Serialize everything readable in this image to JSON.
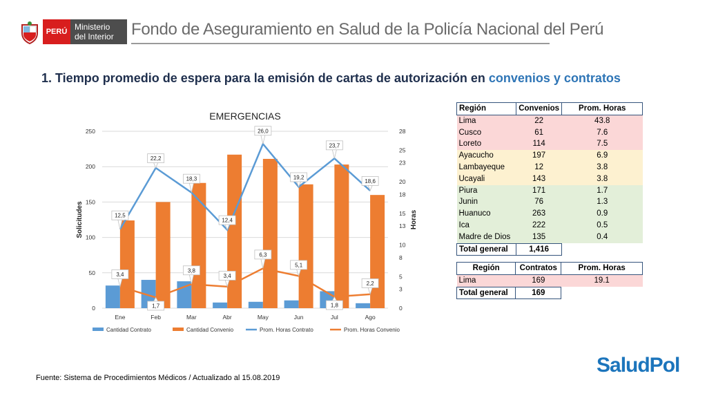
{
  "header": {
    "peru_label": "PERÚ",
    "ministry_line1": "Ministerio",
    "ministry_line2": "del Interior",
    "org_title": "Fondo de Aseguramiento en Salud de la Policía Nacional del Perú"
  },
  "section": {
    "title_main": "1. Tiempo promedio de espera para la emisión de cartas de autorización en ",
    "title_highlight": "convenios y contratos"
  },
  "chart_data": {
    "type": "bar",
    "title": "EMERGENCIAS",
    "categories": [
      "Ene",
      "Feb",
      "Mar",
      "Abr",
      "May",
      "Jun",
      "Jul",
      "Ago"
    ],
    "ylabel": "Solicitudes",
    "y2label": "Horas",
    "ylim": [
      0,
      250
    ],
    "yticks": [
      0,
      50,
      100,
      150,
      200,
      250
    ],
    "y2lim": [
      0,
      28
    ],
    "y2ticks": [
      "0",
      "3",
      "5",
      "8",
      "10",
      "13",
      "15",
      "18",
      "20",
      "23",
      "25",
      "28"
    ],
    "bar_series": [
      {
        "name": "Cantidad Contrato",
        "color": "#5b9bd5",
        "values": [
          32,
          40,
          38,
          8,
          9,
          11,
          24,
          7
        ]
      },
      {
        "name": "Cantidad Convenio",
        "color": "#ed7d31",
        "values": [
          124,
          150,
          177,
          217,
          211,
          175,
          203,
          160
        ]
      }
    ],
    "line_series": [
      {
        "name": "Prom. Horas Contrato",
        "color": "#5b9bd5",
        "values": [
          12.5,
          22.2,
          18.3,
          12.4,
          26.0,
          19.2,
          23.7,
          18.6
        ],
        "labels": [
          "12,5",
          "22,2",
          "18,3",
          "12,4",
          "26,0",
          "19,2",
          "23,7",
          "18,6"
        ]
      },
      {
        "name": "Prom. Horas Convenio",
        "color": "#ed7d31",
        "values": [
          3.4,
          1.7,
          3.8,
          3.4,
          6.3,
          5.1,
          1.8,
          2.2
        ],
        "labels": [
          "3,4",
          "1,7",
          "3,8",
          "3,4",
          "6,3",
          "5,1",
          "1,8",
          "2,2"
        ]
      }
    ],
    "legend_position": "bottom"
  },
  "convenios_table": {
    "headers": [
      "Región",
      "Convenios",
      "Prom. Horas"
    ],
    "rows": [
      {
        "region": "Lima",
        "count": "22",
        "hours": "43.8",
        "tier": "red"
      },
      {
        "region": "Cusco",
        "count": "61",
        "hours": "7.6",
        "tier": "red"
      },
      {
        "region": "Loreto",
        "count": "114",
        "hours": "7.5",
        "tier": "red"
      },
      {
        "region": "Ayacucho",
        "count": "197",
        "hours": "6.9",
        "tier": "yel"
      },
      {
        "region": "Lambayeque",
        "count": "12",
        "hours": "3.8",
        "tier": "yel"
      },
      {
        "region": "Ucayali",
        "count": "143",
        "hours": "3.8",
        "tier": "yel"
      },
      {
        "region": "Piura",
        "count": "171",
        "hours": "1.7",
        "tier": "grn"
      },
      {
        "region": "Junin",
        "count": "76",
        "hours": "1.3",
        "tier": "grn"
      },
      {
        "region": "Huanuco",
        "count": "263",
        "hours": "0.9",
        "tier": "grn"
      },
      {
        "region": "Ica",
        "count": "222",
        "hours": "0.5",
        "tier": "grn"
      },
      {
        "region": "Madre de Dios",
        "count": "135",
        "hours": "0.4",
        "tier": "grn"
      }
    ],
    "total_label": "Total general",
    "total_value": "1,416"
  },
  "contratos_table": {
    "headers": [
      "Región",
      "Contratos",
      "Prom. Horas"
    ],
    "rows": [
      {
        "region": "Lima",
        "count": "169",
        "hours": "19.1",
        "tier": "red"
      }
    ],
    "total_label": "Total general",
    "total_value": "169"
  },
  "footer": {
    "source": "Fuente: Sistema de Procedimientos Médicos / Actualizado al 15.08.2019"
  },
  "logo": {
    "text": "SaludPol"
  },
  "colors": {
    "title_dark": "#1f2f4d",
    "title_highlight": "#2e75b6",
    "contrato": "#5b9bd5",
    "convenio": "#ed7d31"
  }
}
